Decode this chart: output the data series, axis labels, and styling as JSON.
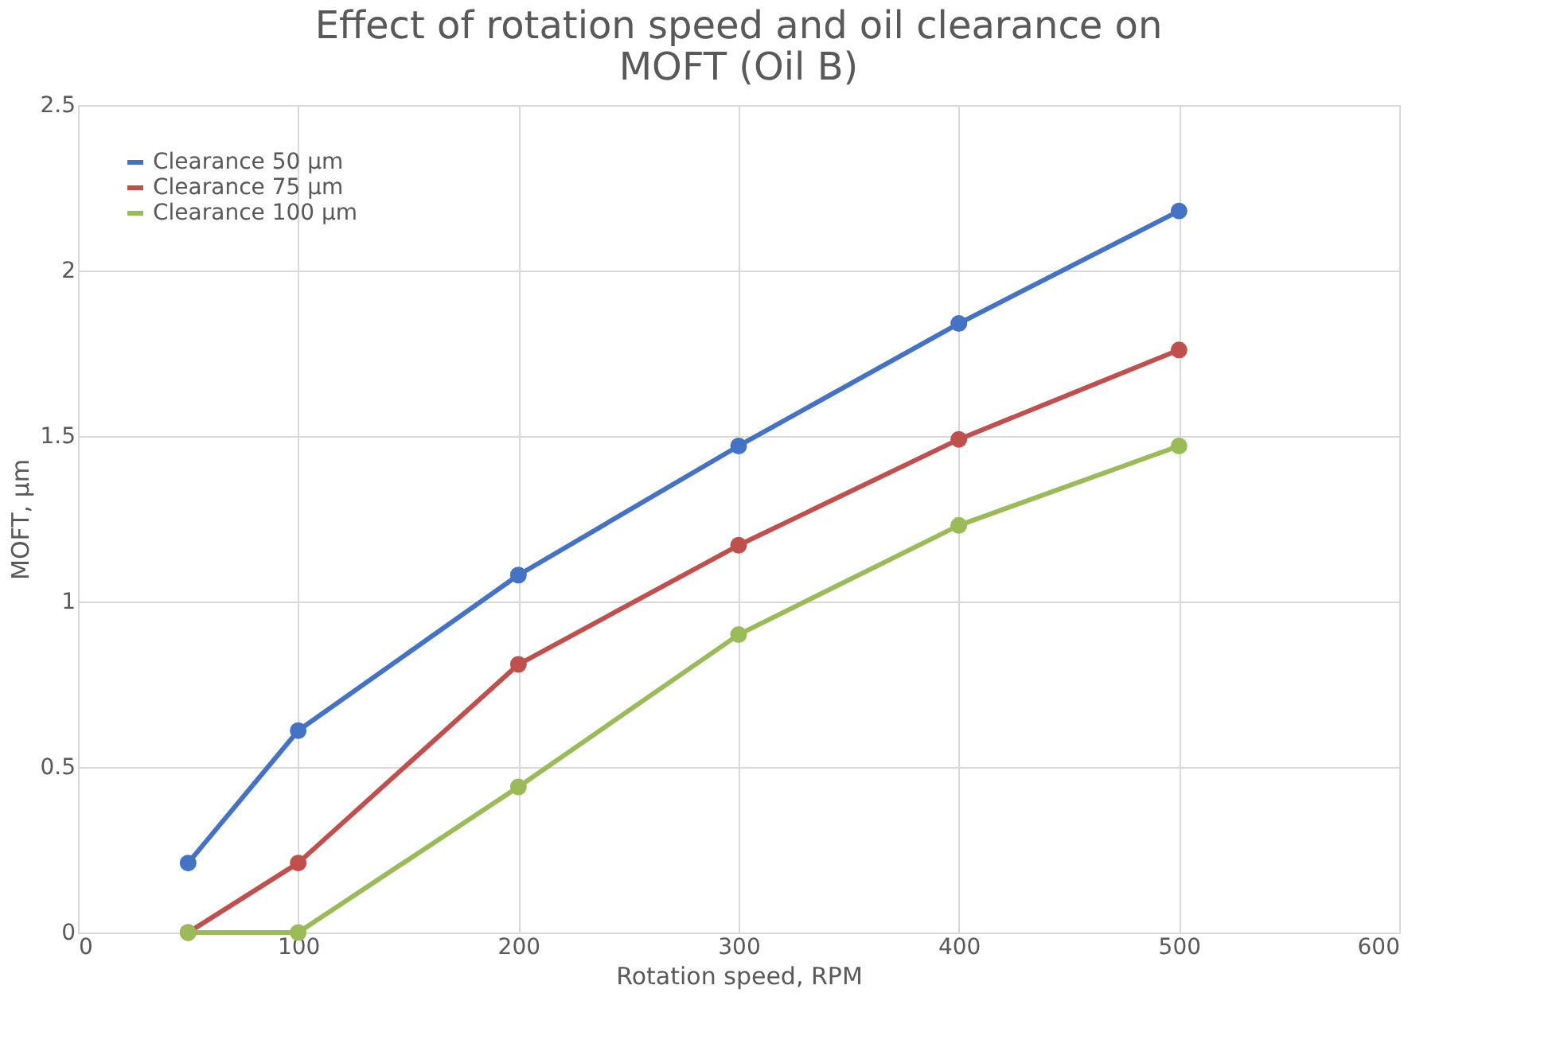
{
  "chart_data": {
    "type": "line",
    "title": "Effect of rotation speed and oil clearance on MOFT (Oil B)",
    "xlabel": "Rotation speed, RPM",
    "ylabel": "MOFT, µm",
    "x": [
      50,
      100,
      200,
      300,
      400,
      500
    ],
    "series": [
      {
        "name": "Clearance 50 µm",
        "color": "#4472c4",
        "values": [
          0.21,
          0.61,
          1.08,
          1.47,
          1.84,
          2.18
        ]
      },
      {
        "name": "Clearance 75 µm",
        "color": "#c0504d",
        "values": [
          0,
          0.21,
          0.81,
          1.17,
          1.49,
          1.76
        ]
      },
      {
        "name": "Clearance 100 µm",
        "color": "#9bbb59",
        "values": [
          0,
          0,
          0.44,
          0.9,
          1.23,
          1.47
        ]
      }
    ],
    "xlim": [
      0,
      600
    ],
    "xticks": [
      0,
      100,
      200,
      300,
      400,
      500,
      600
    ],
    "ylim": [
      0,
      2.5
    ],
    "yticks": [
      0,
      0.5,
      1,
      1.5,
      2,
      2.5
    ],
    "grid": true,
    "legend": "top left",
    "marker": "circle",
    "line_style": "solid"
  }
}
